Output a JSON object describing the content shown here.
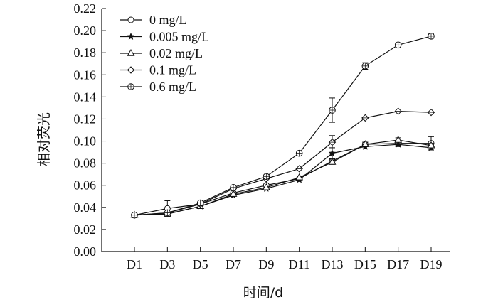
{
  "chart_data": {
    "type": "line",
    "xlabel": "时间/d",
    "ylabel": "相对荧光",
    "categories": [
      "D1",
      "D3",
      "D5",
      "D7",
      "D9",
      "D11",
      "D13",
      "D15",
      "D17",
      "D19"
    ],
    "ylim": [
      0,
      0.22
    ],
    "yticks": [
      "0.00",
      "0.02",
      "0.04",
      "0.06",
      "0.08",
      "0.10",
      "0.12",
      "0.14",
      "0.16",
      "0.18",
      "0.20",
      "0.22"
    ],
    "grid": false,
    "legend_position": "top-left",
    "series": [
      {
        "name": "0 mg/L",
        "marker": "circle",
        "values": [
          0.033,
          0.039,
          0.043,
          0.053,
          0.06,
          0.066,
          0.082,
          0.097,
          0.098,
          0.098
        ],
        "errors": [
          0.001,
          0.007,
          0.001,
          0.001,
          0.001,
          0.001,
          0.002,
          0.002,
          0.002,
          0.006
        ]
      },
      {
        "name": "0.005 mg/L",
        "marker": "star",
        "values": [
          0.033,
          0.034,
          0.041,
          0.051,
          0.057,
          0.065,
          0.089,
          0.095,
          0.097,
          0.094
        ],
        "errors": [
          0.001,
          0.001,
          0.001,
          0.001,
          0.001,
          0.001,
          0.005,
          0.002,
          0.002,
          0.002
        ]
      },
      {
        "name": "0.02 mg/L",
        "marker": "triangle",
        "values": [
          0.033,
          0.034,
          0.041,
          0.052,
          0.058,
          0.067,
          0.081,
          0.097,
          0.101,
          0.096
        ],
        "errors": [
          0.001,
          0.001,
          0.001,
          0.001,
          0.001,
          0.001,
          0.002,
          0.002,
          0.002,
          0.002
        ]
      },
      {
        "name": "0.1 mg/L",
        "marker": "diamond",
        "values": [
          0.033,
          0.035,
          0.043,
          0.057,
          0.066,
          0.075,
          0.099,
          0.121,
          0.127,
          0.126
        ],
        "errors": [
          0.001,
          0.001,
          0.001,
          0.001,
          0.001,
          0.001,
          0.006,
          0.001,
          0.001,
          0.001
        ]
      },
      {
        "name": "0.6 mg/L",
        "marker": "crossed-circle",
        "values": [
          0.033,
          0.035,
          0.044,
          0.058,
          0.068,
          0.089,
          0.128,
          0.168,
          0.187,
          0.195
        ],
        "errors": [
          0.001,
          0.001,
          0.001,
          0.001,
          0.001,
          0.001,
          0.011,
          0.003,
          0.001,
          0.002
        ]
      }
    ]
  }
}
